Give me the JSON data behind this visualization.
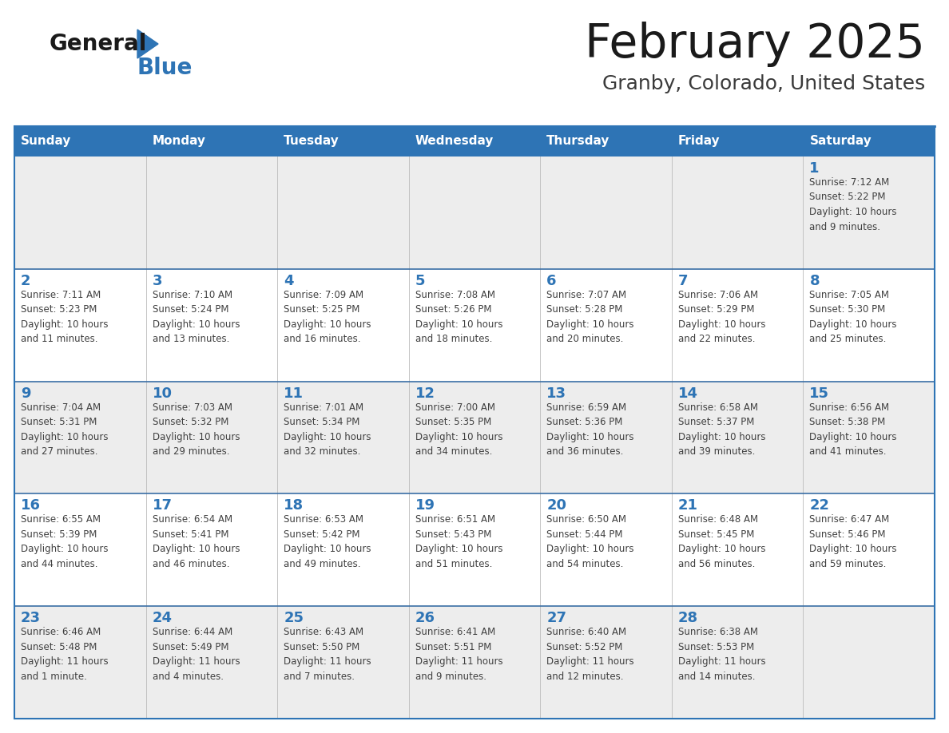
{
  "title": "February 2025",
  "subtitle": "Granby, Colorado, United States",
  "header_bg_color": "#2E74B5",
  "header_text_color": "#FFFFFF",
  "cell_bg_white": "#FFFFFF",
  "cell_bg_gray": "#EDEDED",
  "border_color": "#2E74B5",
  "row_border_color": "#3A6EA5",
  "days_of_week": [
    "Sunday",
    "Monday",
    "Tuesday",
    "Wednesday",
    "Thursday",
    "Friday",
    "Saturday"
  ],
  "title_color": "#1a1a1a",
  "subtitle_color": "#3a3a3a",
  "day_num_color": "#2E74B5",
  "text_color": "#404040",
  "logo_general_color": "#1a1a1a",
  "logo_blue_color": "#2E74B5",
  "triangle_color": "#2E74B5",
  "calendar": [
    [
      {
        "day": "",
        "info": ""
      },
      {
        "day": "",
        "info": ""
      },
      {
        "day": "",
        "info": ""
      },
      {
        "day": "",
        "info": ""
      },
      {
        "day": "",
        "info": ""
      },
      {
        "day": "",
        "info": ""
      },
      {
        "day": "1",
        "info": "Sunrise: 7:12 AM\nSunset: 5:22 PM\nDaylight: 10 hours\nand 9 minutes."
      }
    ],
    [
      {
        "day": "2",
        "info": "Sunrise: 7:11 AM\nSunset: 5:23 PM\nDaylight: 10 hours\nand 11 minutes."
      },
      {
        "day": "3",
        "info": "Sunrise: 7:10 AM\nSunset: 5:24 PM\nDaylight: 10 hours\nand 13 minutes."
      },
      {
        "day": "4",
        "info": "Sunrise: 7:09 AM\nSunset: 5:25 PM\nDaylight: 10 hours\nand 16 minutes."
      },
      {
        "day": "5",
        "info": "Sunrise: 7:08 AM\nSunset: 5:26 PM\nDaylight: 10 hours\nand 18 minutes."
      },
      {
        "day": "6",
        "info": "Sunrise: 7:07 AM\nSunset: 5:28 PM\nDaylight: 10 hours\nand 20 minutes."
      },
      {
        "day": "7",
        "info": "Sunrise: 7:06 AM\nSunset: 5:29 PM\nDaylight: 10 hours\nand 22 minutes."
      },
      {
        "day": "8",
        "info": "Sunrise: 7:05 AM\nSunset: 5:30 PM\nDaylight: 10 hours\nand 25 minutes."
      }
    ],
    [
      {
        "day": "9",
        "info": "Sunrise: 7:04 AM\nSunset: 5:31 PM\nDaylight: 10 hours\nand 27 minutes."
      },
      {
        "day": "10",
        "info": "Sunrise: 7:03 AM\nSunset: 5:32 PM\nDaylight: 10 hours\nand 29 minutes."
      },
      {
        "day": "11",
        "info": "Sunrise: 7:01 AM\nSunset: 5:34 PM\nDaylight: 10 hours\nand 32 minutes."
      },
      {
        "day": "12",
        "info": "Sunrise: 7:00 AM\nSunset: 5:35 PM\nDaylight: 10 hours\nand 34 minutes."
      },
      {
        "day": "13",
        "info": "Sunrise: 6:59 AM\nSunset: 5:36 PM\nDaylight: 10 hours\nand 36 minutes."
      },
      {
        "day": "14",
        "info": "Sunrise: 6:58 AM\nSunset: 5:37 PM\nDaylight: 10 hours\nand 39 minutes."
      },
      {
        "day": "15",
        "info": "Sunrise: 6:56 AM\nSunset: 5:38 PM\nDaylight: 10 hours\nand 41 minutes."
      }
    ],
    [
      {
        "day": "16",
        "info": "Sunrise: 6:55 AM\nSunset: 5:39 PM\nDaylight: 10 hours\nand 44 minutes."
      },
      {
        "day": "17",
        "info": "Sunrise: 6:54 AM\nSunset: 5:41 PM\nDaylight: 10 hours\nand 46 minutes."
      },
      {
        "day": "18",
        "info": "Sunrise: 6:53 AM\nSunset: 5:42 PM\nDaylight: 10 hours\nand 49 minutes."
      },
      {
        "day": "19",
        "info": "Sunrise: 6:51 AM\nSunset: 5:43 PM\nDaylight: 10 hours\nand 51 minutes."
      },
      {
        "day": "20",
        "info": "Sunrise: 6:50 AM\nSunset: 5:44 PM\nDaylight: 10 hours\nand 54 minutes."
      },
      {
        "day": "21",
        "info": "Sunrise: 6:48 AM\nSunset: 5:45 PM\nDaylight: 10 hours\nand 56 minutes."
      },
      {
        "day": "22",
        "info": "Sunrise: 6:47 AM\nSunset: 5:46 PM\nDaylight: 10 hours\nand 59 minutes."
      }
    ],
    [
      {
        "day": "23",
        "info": "Sunrise: 6:46 AM\nSunset: 5:48 PM\nDaylight: 11 hours\nand 1 minute."
      },
      {
        "day": "24",
        "info": "Sunrise: 6:44 AM\nSunset: 5:49 PM\nDaylight: 11 hours\nand 4 minutes."
      },
      {
        "day": "25",
        "info": "Sunrise: 6:43 AM\nSunset: 5:50 PM\nDaylight: 11 hours\nand 7 minutes."
      },
      {
        "day": "26",
        "info": "Sunrise: 6:41 AM\nSunset: 5:51 PM\nDaylight: 11 hours\nand 9 minutes."
      },
      {
        "day": "27",
        "info": "Sunrise: 6:40 AM\nSunset: 5:52 PM\nDaylight: 11 hours\nand 12 minutes."
      },
      {
        "day": "28",
        "info": "Sunrise: 6:38 AM\nSunset: 5:53 PM\nDaylight: 11 hours\nand 14 minutes."
      },
      {
        "day": "",
        "info": ""
      }
    ]
  ],
  "row_bg_colors": [
    "#EDEDED",
    "#FFFFFF",
    "#EDEDED",
    "#FFFFFF",
    "#EDEDED"
  ],
  "figsize": [
    11.88,
    9.18
  ],
  "dpi": 100
}
